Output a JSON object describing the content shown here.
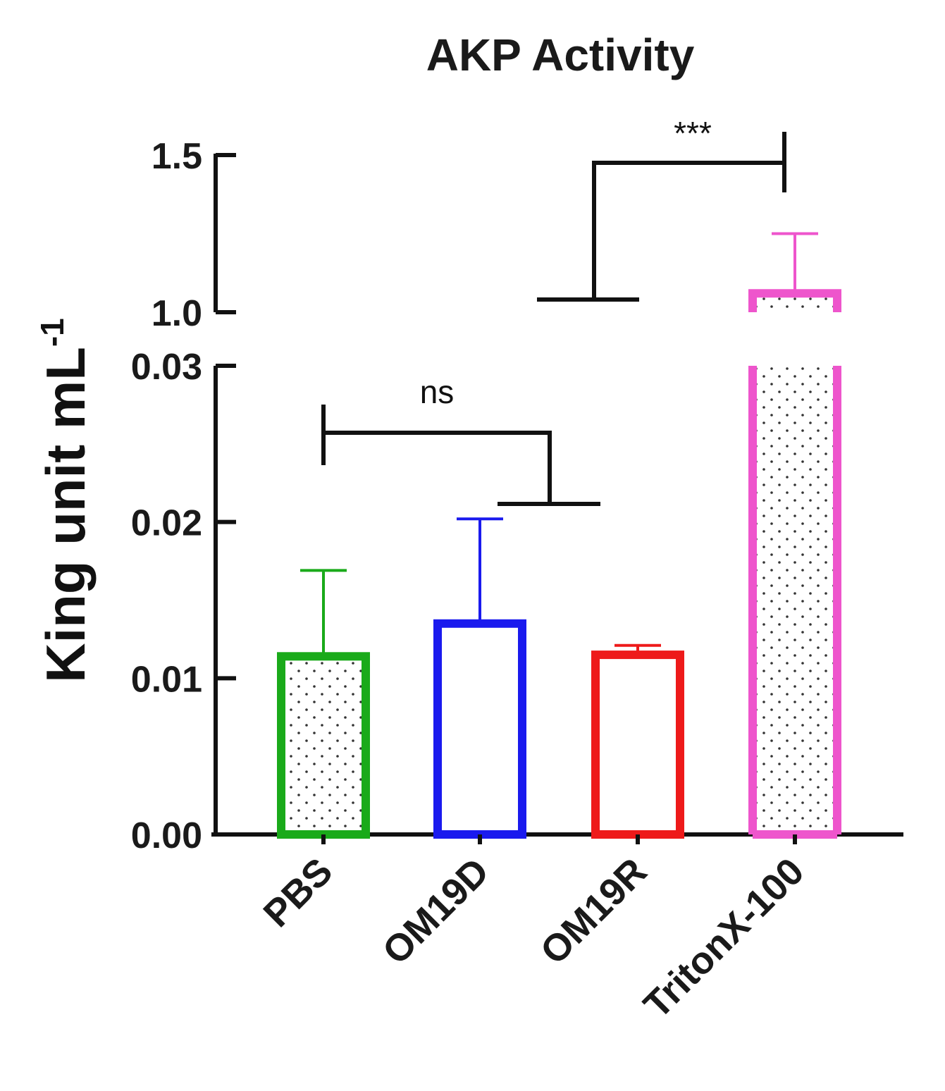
{
  "chart_data": {
    "type": "bar",
    "title": "AKP Activity",
    "xlabel": "",
    "ylabel": "King unit mL",
    "ylabel_superscript": "-1",
    "categories": [
      "PBS",
      "OM19D",
      "OM19R",
      "TritonX-100"
    ],
    "values": [
      0.0114,
      0.0135,
      0.0115,
      1.06
    ],
    "errors": [
      0.0055,
      0.0067,
      0.0006,
      0.19
    ],
    "colors": [
      "#1aaa1a",
      "#1a1aee",
      "#ee1a1a",
      "#ee55cc"
    ],
    "patterns": [
      "dots",
      "none",
      "none",
      "dots"
    ],
    "y_axis_segments": [
      {
        "range": [
          0,
          0.03
        ],
        "ticks": [
          "0.00",
          "0.01",
          "0.02",
          "0.03"
        ],
        "tick_values": [
          0,
          0.01,
          0.02,
          0.03
        ]
      },
      {
        "range": [
          1.0,
          1.5
        ],
        "ticks": [
          "1.0",
          "1.5"
        ],
        "tick_values": [
          1.0,
          1.5
        ]
      }
    ],
    "significance": [
      {
        "label": "ns",
        "from": "PBS",
        "to": "OM19D"
      },
      {
        "label": "***",
        "from": "OM19R",
        "to": "TritonX-100"
      }
    ]
  }
}
